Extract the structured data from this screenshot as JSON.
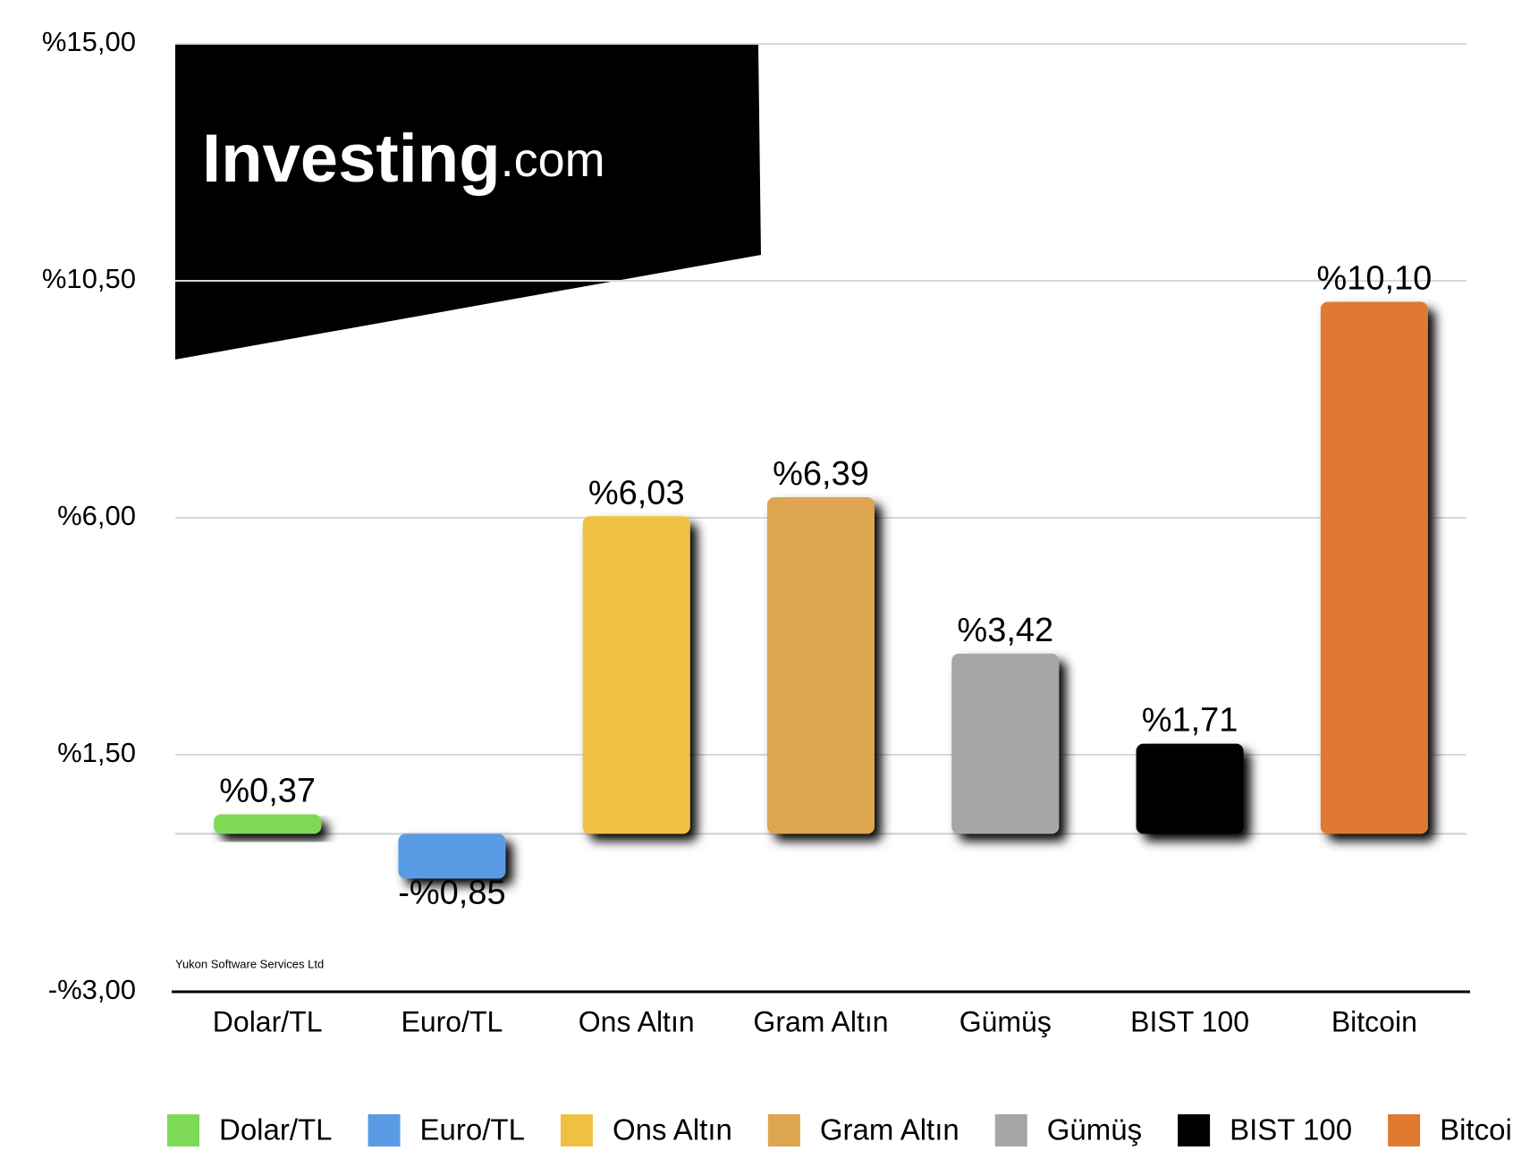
{
  "chart_data": {
    "type": "bar",
    "categories": [
      "Dolar/TL",
      "Euro/TL",
      "Ons Altın",
      "Gram Altın",
      "Gümüş",
      "BIST 100",
      "Bitcoin"
    ],
    "values": [
      0.37,
      -0.85,
      6.03,
      6.39,
      3.42,
      1.71,
      10.1
    ],
    "value_labels": [
      "%0,37",
      "-%0,85",
      "%6,03",
      "%6,39",
      "%3,42",
      "%1,71",
      "%10,10"
    ],
    "colors": [
      "#7ed957",
      "#5a9be6",
      "#f0c043",
      "#dda550",
      "#a6a6a6",
      "#000000",
      "#e07a30"
    ],
    "ylim": [
      -3,
      15
    ],
    "yticks": [
      {
        "value": -3,
        "label": "-%3,00"
      },
      {
        "value": 1.5,
        "label": "%1,50"
      },
      {
        "value": 6,
        "label": "%6,00"
      },
      {
        "value": 10.5,
        "label": "%10,50"
      },
      {
        "value": 15,
        "label": "%15,00"
      }
    ],
    "grid": true,
    "legend": "bottom",
    "watermark": {
      "name": "Investing",
      "suffix": ".com"
    },
    "credit": "Yukon Software Services Ltd"
  }
}
